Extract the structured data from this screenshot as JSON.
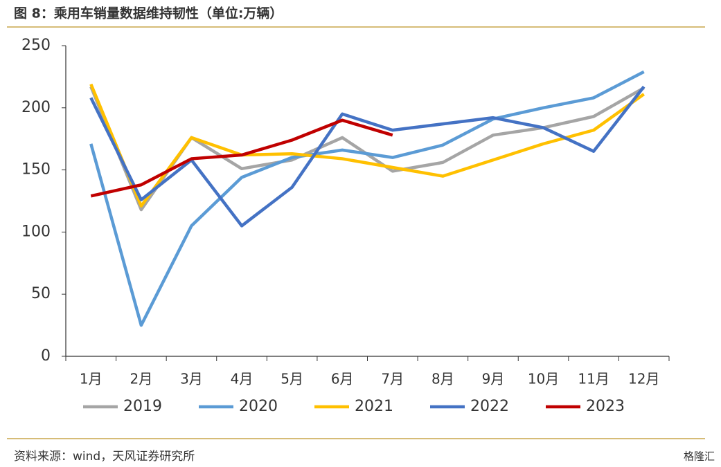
{
  "title": "图 8：乘用车销量数据维持韧性（单位:万辆）",
  "chart_data": {
    "type": "line",
    "categories": [
      "1月",
      "2月",
      "3月",
      "4月",
      "5月",
      "6月",
      "7月",
      "8月",
      "9月",
      "10月",
      "11月",
      "12月"
    ],
    "series": [
      {
        "name": "2019",
        "color": "#a5a5a5",
        "values": [
          217,
          118,
          176,
          151,
          158,
          176,
          149,
          156,
          178,
          184,
          193,
          216
        ]
      },
      {
        "name": "2020",
        "color": "#5b9bd5",
        "values": [
          171,
          25,
          105,
          144,
          160,
          166,
          160,
          170,
          191,
          200,
          208,
          229
        ]
      },
      {
        "name": "2021",
        "color": "#ffc000",
        "values": [
          219,
          121,
          176,
          162,
          163,
          159,
          152,
          145,
          158,
          171,
          182,
          211
        ]
      },
      {
        "name": "2022",
        "color": "#4472c4",
        "values": [
          208,
          126,
          158,
          105,
          136,
          195,
          182,
          187,
          192,
          184,
          165,
          217
        ]
      },
      {
        "name": "2023",
        "color": "#c00000",
        "values": [
          129,
          138,
          159,
          162,
          174,
          190,
          178,
          null,
          null,
          null,
          null,
          null
        ]
      }
    ],
    "ylim": [
      0,
      250
    ],
    "yticks": [
      0,
      50,
      100,
      150,
      200,
      250
    ],
    "grid": false
  },
  "source": "资料来源：wind，天风证券研究所",
  "watermark": "格隆汇"
}
